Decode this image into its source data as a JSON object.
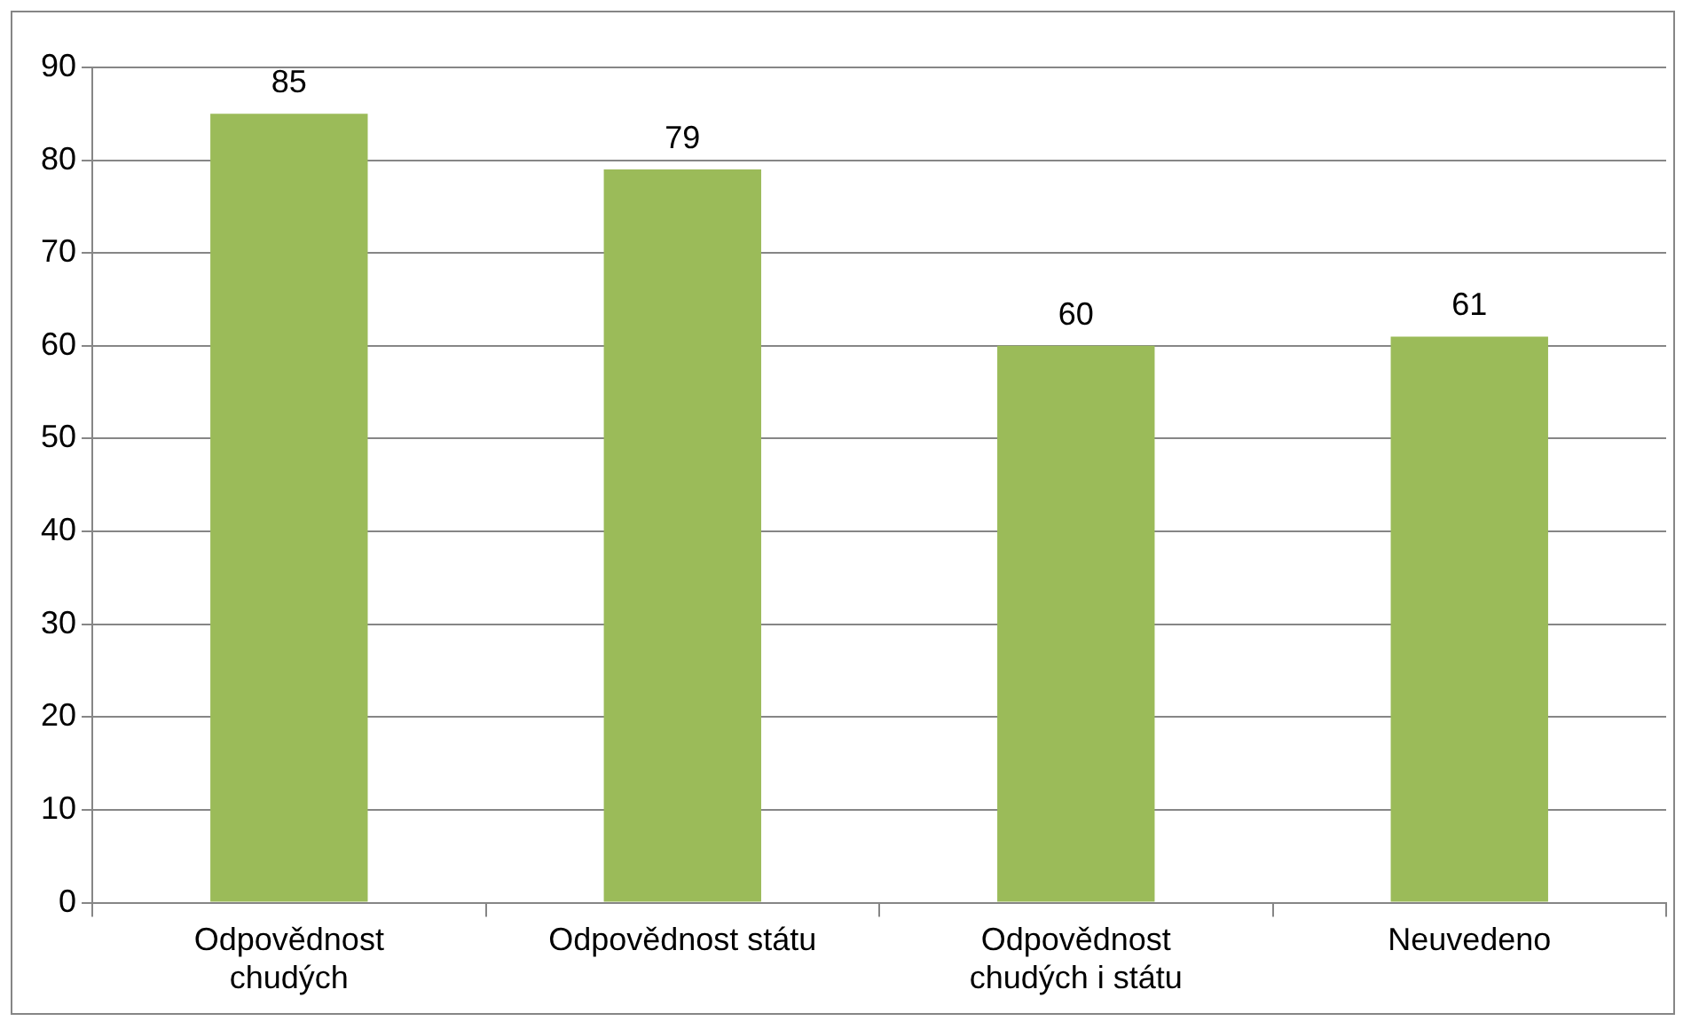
{
  "chart_data": {
    "type": "bar",
    "categories": [
      "Odpovědnost chudých",
      "Odpovědnost státu",
      "Odpovědnost chudých i státu",
      "Neuvedeno"
    ],
    "values": [
      85,
      79,
      60,
      61
    ],
    "color": "#9bbb59",
    "ylim": [
      0,
      90
    ],
    "yticks": [
      0,
      10,
      20,
      30,
      40,
      50,
      60,
      70,
      80,
      90
    ],
    "grid": "y",
    "data_labels": true,
    "legend": false
  }
}
